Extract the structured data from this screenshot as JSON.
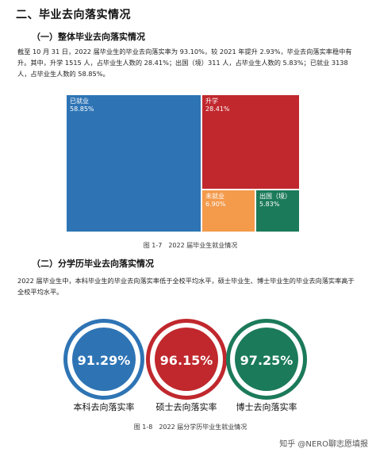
{
  "section": {
    "title": "二、毕业去向落实情况",
    "sub1": "（一）整体毕业去向落实情况",
    "para1": "截至 10 月 31 日，2022 届毕业生的毕业去向落实率为 93.10%，较 2021 年提升 2.93%，毕业去向落实率稳中有升。其中，升学 1515 人，占毕业生人数的 28.41%；出国（境）311 人，占毕业生人数的 5.83%；已就业 3138 人，占毕业生人数的 58.85%。",
    "caption1": "图 1-7　2022 届毕业生就业情况",
    "sub2": "（二）分学历毕业去向落实情况",
    "para2": "2022 届毕业生中，本科毕业生的毕业去向落实率低于全校平均水平，硕士毕业生、博士毕业生的毕业去向落实率高于全校平均水平。",
    "caption2": "图 1-8　2022 届分学历毕业生就业情况",
    "watermark": "知乎 @NERO聊志愿填报"
  },
  "chart_data": [
    {
      "type": "treemap",
      "items": [
        {
          "label": "已就业",
          "value": "58.85%",
          "color": "#2e74b5"
        },
        {
          "label": "升学",
          "value": "28.41%",
          "color": "#c0282d"
        },
        {
          "label": "未就业",
          "value": "6.90%",
          "color": "#f39a4b"
        },
        {
          "label": "出国（境）",
          "value": "5.83%",
          "color": "#1b7a5a"
        }
      ]
    },
    {
      "type": "gauge",
      "items": [
        {
          "label": "本科去向落实率",
          "value": "91.29%",
          "color": "#2e74b5"
        },
        {
          "label": "硕士去向落实率",
          "value": "96.15%",
          "color": "#c0282d"
        },
        {
          "label": "博士去向落实率",
          "value": "97.25%",
          "color": "#1b7a5a"
        }
      ]
    }
  ]
}
